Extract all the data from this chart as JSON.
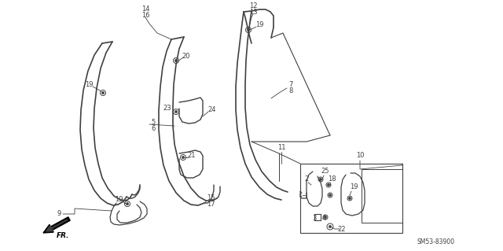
{
  "bg_color": "#ffffff",
  "fig_width": 6.4,
  "fig_height": 3.19,
  "dpi": 100,
  "diagram_code": "SM53-83900",
  "line_color": "#404040",
  "label_fontsize": 6.0,
  "code_fontsize": 5.5
}
